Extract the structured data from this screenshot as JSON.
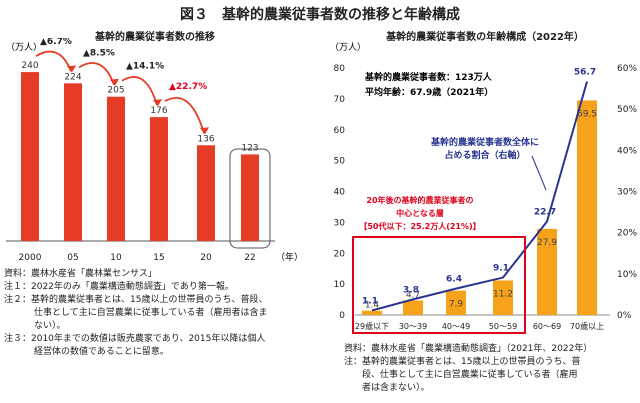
{
  "figure_title": "図３　基幹的農業従事者数の推移と年齢構成",
  "colors": {
    "red": "#e63b24",
    "orange": "#f7a21b",
    "blue": "#2a3590",
    "frame_red": "#e0001b",
    "dark_red_text": "#e0001b"
  },
  "chart_data": [
    {
      "type": "bar",
      "title": "基幹的農業従事者数の推移",
      "ylabel": "（万人）",
      "xlabel": "（年）",
      "categories": [
        "2000",
        "05",
        "10",
        "15",
        "20",
        "22"
      ],
      "values": [
        240,
        224,
        205,
        176,
        136,
        123
      ],
      "value_labels": [
        "240",
        "224",
        "205",
        "176",
        "136",
        "123"
      ],
      "decline_labels": [
        "▲6.7%",
        "▲8.5%",
        "▲14.1%",
        "▲22.7%"
      ],
      "ylim": [
        0,
        260
      ]
    },
    {
      "type": "bar",
      "title": "基幹的農業従事者数の年齢構成（2022年）",
      "ylabel_left": "（万人）",
      "left_ticks": [
        "80",
        "70",
        "60",
        "50",
        "40",
        "30",
        "20",
        "10",
        "0"
      ],
      "right_ticks": [
        "60%",
        "50%",
        "40%",
        "30%",
        "20%",
        "10%",
        "0%"
      ],
      "categories": [
        "29歳以下",
        "30～39",
        "40～49",
        "50～59",
        "60～69",
        "70歳以上"
      ],
      "values": [
        1.4,
        4.7,
        7.9,
        11.2,
        27.9,
        69.5
      ],
      "value_labels": [
        "1.4",
        "4.7",
        "7.9",
        "11.2",
        "27.9",
        "69.5"
      ],
      "ylim_left": [
        0,
        80
      ],
      "cumulative_share": [
        1.1,
        3.8,
        6.4,
        9.1,
        22.7,
        56.7
      ],
      "share_labels": [
        "1.1",
        "3.8",
        "6.4",
        "9.1",
        "22.7",
        "56.7"
      ],
      "ylim_right": [
        0,
        60
      ],
      "info_line1": "基幹的農業従事者数：123万人",
      "info_line2": "平均年齢：67.9歳（2021年）",
      "line_annotation_1": "基幹的農業従事者数全体に",
      "line_annotation_2": "占める割合（右軸）",
      "box_annotation_1": "20年後の基幹的農業従事者の",
      "box_annotation_2": "中心となる層",
      "box_annotation_3": "【50代以下：25.2万人(21%)】"
    }
  ],
  "notes_left": {
    "source": "資料：農林水産省「農林業センサス」",
    "note1": "注１：2022年のみ「農業構造動態調査」であり第一報。",
    "note2a": "注２：基幹的農業従事者とは、15歳以上の世帯員のうち、普段、",
    "note2b": "仕事として主に自営農業に従事している者（雇用者は含ま",
    "note2c": "ない）。",
    "note3a": "注３：2010年までの数値は販売農家であり、2015年以降は個人",
    "note3b": "経営体の数値であることに留意。"
  },
  "notes_right": {
    "source": "資料：農林水産省「農業構造動態調査」（2021年、2022年）",
    "note1a": "注：基幹的農業従事者とは、15歳以上の世帯員のうち、普",
    "note1b": "段、仕事として主に自営農業に従事している者（雇用",
    "note1c": "者は含まない）。"
  }
}
